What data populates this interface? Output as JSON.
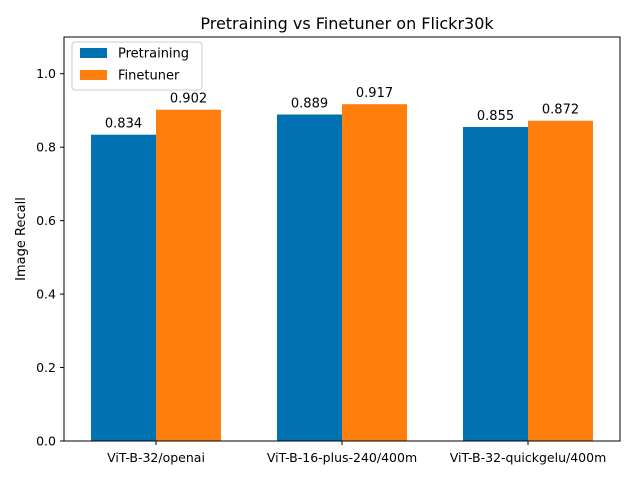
{
  "chart_data": {
    "type": "bar",
    "title": "Pretraining vs Finetuner on Flickr30k",
    "xlabel": "",
    "ylabel": "Image Recall",
    "ylim": [
      0,
      1.1
    ],
    "yticks": [
      0.0,
      0.2,
      0.4,
      0.6,
      0.8,
      1.0
    ],
    "ytick_labels": [
      "0.0",
      "0.2",
      "0.4",
      "0.6",
      "0.8",
      "1.0"
    ],
    "categories": [
      "ViT-B-32/openai",
      "ViT-B-16-plus-240/400m",
      "ViT-B-32-quickgelu/400m"
    ],
    "series": [
      {
        "name": "Pretraining",
        "color": "#0072b2",
        "values": [
          0.834,
          0.889,
          0.855
        ],
        "labels": [
          "0.834",
          "0.889",
          "0.855"
        ]
      },
      {
        "name": "Finetuner",
        "color": "#ff7f0e",
        "values": [
          0.902,
          0.917,
          0.872
        ],
        "labels": [
          "0.902",
          "0.917",
          "0.872"
        ]
      }
    ],
    "grid": false,
    "legend_position": "top-left"
  }
}
